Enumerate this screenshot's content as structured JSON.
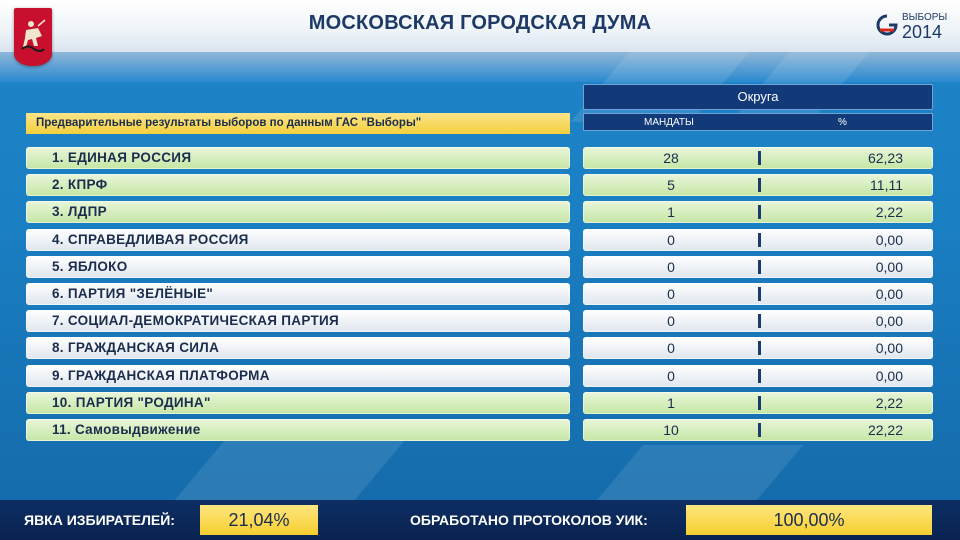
{
  "header": {
    "title": "МОСКОВСКАЯ ГОРОДСКАЯ ДУМА",
    "logo_top": "ВЫБОРЫ",
    "logo_year": "2014"
  },
  "subtitle": "Предварительные результаты выборов  по данным ГАС \"Выборы\"",
  "table": {
    "section_header": "Округа",
    "col_mandates": "МАНДАТЫ",
    "col_percent": "%",
    "rows": [
      {
        "party": "1. ЕДИНАЯ РОССИЯ",
        "mandates": "28",
        "percent": "62,23",
        "style": "green"
      },
      {
        "party": "2. КПРФ",
        "mandates": "5",
        "percent": "11,11",
        "style": "green"
      },
      {
        "party": "3. ЛДПР",
        "mandates": "1",
        "percent": "2,22",
        "style": "green"
      },
      {
        "party": "4. СПРАВЕДЛИВАЯ РОССИЯ",
        "mandates": "0",
        "percent": "0,00",
        "style": "white"
      },
      {
        "party": "5. ЯБЛОКО",
        "mandates": "0",
        "percent": "0,00",
        "style": "white"
      },
      {
        "party": "6. ПАРТИЯ \"ЗЕЛЁНЫЕ\"",
        "mandates": "0",
        "percent": "0,00",
        "style": "white"
      },
      {
        "party": "7. СОЦИАЛ-ДЕМОКРАТИЧЕСКАЯ ПАРТИЯ",
        "mandates": "0",
        "percent": "0,00",
        "style": "white"
      },
      {
        "party": "8. ГРАЖДАНСКАЯ СИЛА",
        "mandates": "0",
        "percent": "0,00",
        "style": "white"
      },
      {
        "party": "9. ГРАЖДАНСКАЯ ПЛАТФОРМА",
        "mandates": "0",
        "percent": "0,00",
        "style": "white"
      },
      {
        "party": "10. ПАРТИЯ \"РОДИНА\"",
        "mandates": "1",
        "percent": "2,22",
        "style": "green"
      },
      {
        "party": "11. Самовыдвижение",
        "mandates": "10",
        "percent": "22,22",
        "style": "green"
      }
    ]
  },
  "footer": {
    "turnout_label": "ЯВКА ИЗБИРАТЕЛЕЙ:",
    "turnout_value": "21,04%",
    "protocols_label": "ОБРАБОТАНО ПРОТОКОЛОВ УИК:",
    "protocols_value": "100,00%"
  },
  "colors": {
    "green_row": "#c5e6a4",
    "white_row": "#dfe6ee",
    "gold": "#f6cf2e",
    "navy": "#123a78"
  },
  "icons": [
    "moscow-coat-of-arms-icon",
    "vybory-logo-icon"
  ]
}
